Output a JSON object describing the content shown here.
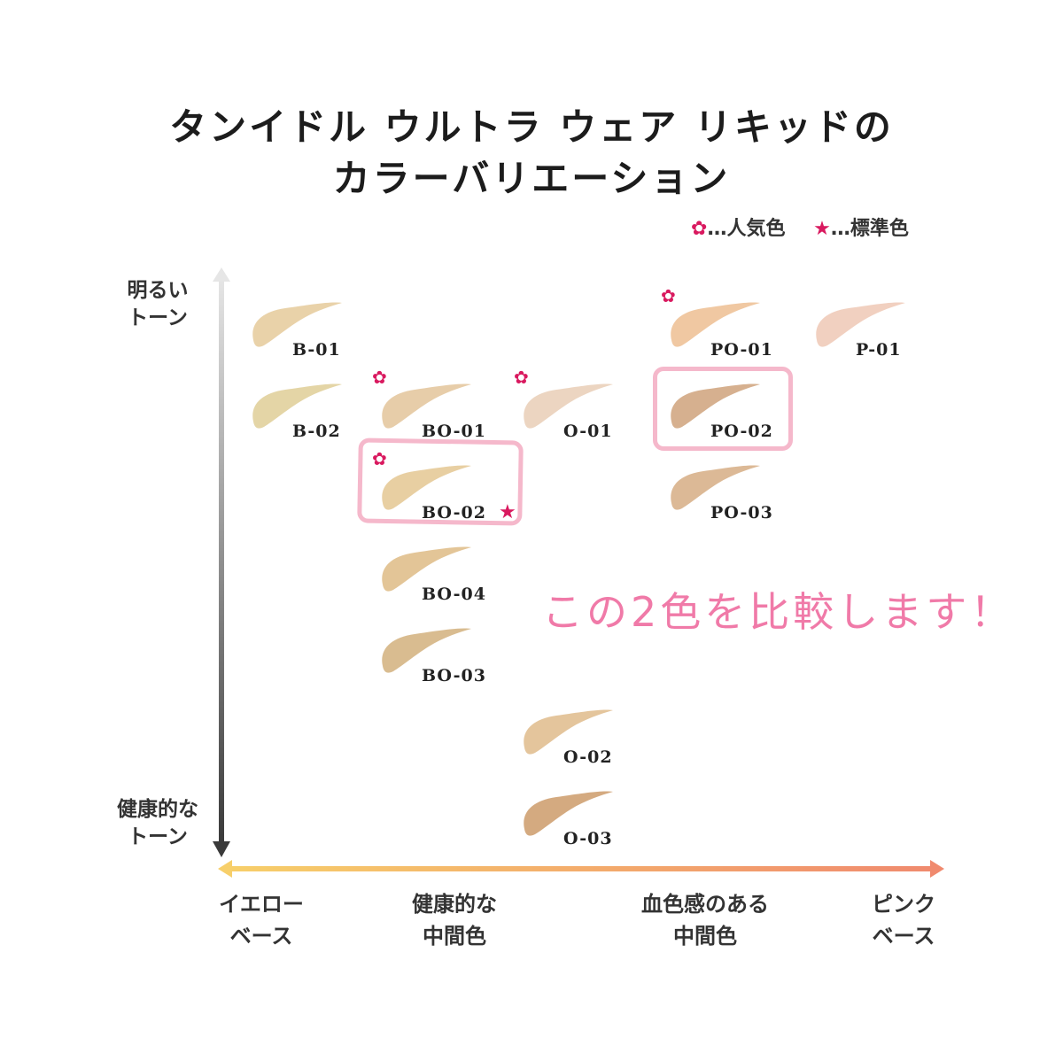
{
  "title": {
    "line1": "タンイドル ウルトラ ウェア リキッドの",
    "line2": "カラーバリエーション"
  },
  "legend": {
    "popular_icon": "rose-icon",
    "popular_label": "…人気色",
    "standard_icon": "star-icon",
    "standard_label": "…標準色"
  },
  "y_axis": {
    "top_label": "明るい\nトーン",
    "bottom_label": "健康的な\nトーン"
  },
  "x_axis": {
    "labels": [
      "イエロー\nベース",
      "健康的な\n中間色",
      "血色感のある\n中間色",
      "ピンク\nベース"
    ],
    "gradient_colors": [
      "#f7cf6a",
      "#f08a6e"
    ]
  },
  "shades": [
    {
      "code": "B-01",
      "color": "#e9d2a9",
      "popular": false,
      "standard": false
    },
    {
      "code": "B-02",
      "color": "#e4d5a6",
      "popular": false,
      "standard": false
    },
    {
      "code": "BO-01",
      "color": "#e7cda9",
      "popular": true,
      "standard": false
    },
    {
      "code": "O-01",
      "color": "#ecd5c1",
      "popular": true,
      "standard": false
    },
    {
      "code": "PO-01",
      "color": "#f0c8a2",
      "popular": true,
      "standard": false
    },
    {
      "code": "P-01",
      "color": "#f1d0c0",
      "popular": false,
      "standard": false
    },
    {
      "code": "PO-02",
      "color": "#d6b08f",
      "popular": false,
      "standard": false
    },
    {
      "code": "BO-02",
      "color": "#e8cfa2",
      "popular": true,
      "standard": true
    },
    {
      "code": "PO-03",
      "color": "#dcb996",
      "popular": false,
      "standard": false
    },
    {
      "code": "BO-04",
      "color": "#e3c597",
      "popular": false,
      "standard": false
    },
    {
      "code": "BO-03",
      "color": "#d9bc90",
      "popular": false,
      "standard": false
    },
    {
      "code": "O-02",
      "color": "#e4c59c",
      "popular": false,
      "standard": false
    },
    {
      "code": "O-03",
      "color": "#d4aa80",
      "popular": false,
      "standard": false
    }
  ],
  "highlighted_shades": [
    "BO-02",
    "PO-02"
  ],
  "highlight_color": "#f5b8cb",
  "note": "この2色を比較します！",
  "accent_color": "#d9195f"
}
